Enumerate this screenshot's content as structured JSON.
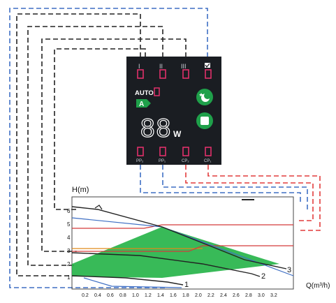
{
  "panel": {
    "speed_labels": [
      "I",
      "II",
      "III"
    ],
    "auto_label": "AUTO",
    "mode_badge": "A",
    "power_value": "88",
    "power_unit": "W",
    "bottom_labels": [
      "PP₂",
      "PP₁",
      "CP₂",
      "CP₁"
    ]
  },
  "chart": {
    "y_axis_label": "H(m)",
    "x_axis_label": "Q(m³/h)",
    "y_ticks": [
      "1",
      "2",
      "3",
      "4",
      "5",
      "6"
    ],
    "x_ticks": [
      "0.2",
      "0.4",
      "0.6",
      "0.8",
      "1.0",
      "1.2",
      "1.4",
      "1.6",
      "1.8",
      "2.0",
      "2.2",
      "2.4",
      "2.6",
      "2.8",
      "3.0",
      "3.2"
    ],
    "curve_labels": [
      "1",
      "2",
      "3"
    ]
  },
  "colors": {
    "panel_bg": "#1a1d22",
    "accent_green": "#1fa04a",
    "region_green": "#27b44a",
    "indicator_pink": "#e0306a",
    "line_black": "#222222",
    "line_blue": "#3f6fc4",
    "line_red": "#e23c3c"
  },
  "icons": [
    "moon-icon",
    "square-icon",
    "mode-badge-icon",
    "speed-check-icon"
  ]
}
